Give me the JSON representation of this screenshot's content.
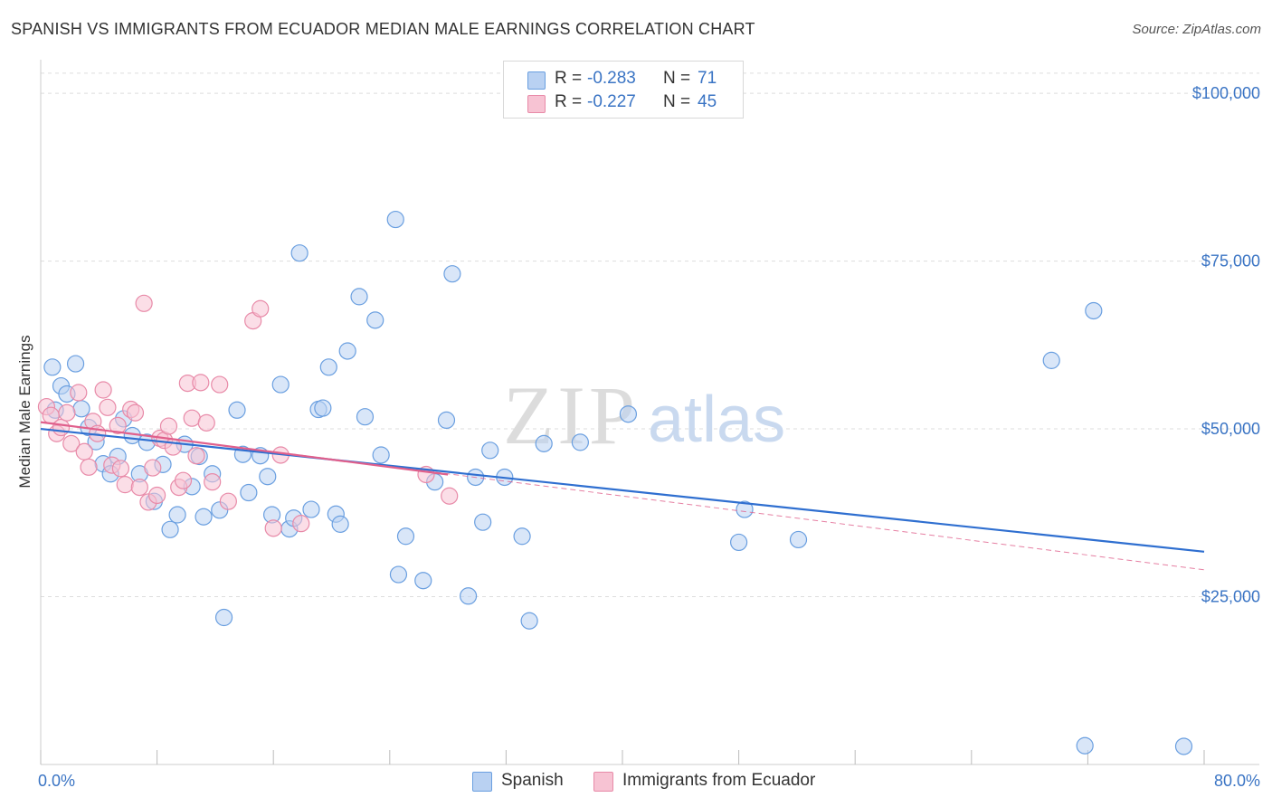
{
  "header": {
    "title": "SPANISH VS IMMIGRANTS FROM ECUADOR MEDIAN MALE EARNINGS CORRELATION CHART",
    "source": "Source: ZipAtlas.com"
  },
  "watermark": {
    "zip": "ZIP",
    "atlas": "atlas"
  },
  "legend_stats": [
    {
      "r_label": "R =",
      "r_value": "-0.283",
      "n_label": "N =",
      "n_value": "71"
    },
    {
      "r_label": "R =",
      "r_value": "-0.227",
      "n_label": "N =",
      "n_value": "45"
    }
  ],
  "chart_data": {
    "type": "scatter",
    "title": "SPANISH VS IMMIGRANTS FROM ECUADOR MEDIAN MALE EARNINGS CORRELATION CHART",
    "xlabel": "",
    "ylabel": "Median Male Earnings",
    "xlim": [
      0,
      80
    ],
    "ylim": [
      0,
      105000
    ],
    "x_tick_labels": [
      "0.0%",
      "80.0%"
    ],
    "y_ticks": [
      25000,
      50000,
      75000,
      100000
    ],
    "y_tick_labels": [
      "$25,000",
      "$50,000",
      "$75,000",
      "$100,000"
    ],
    "grid": true,
    "legend_position": "bottom",
    "series": [
      {
        "name": "Spanish",
        "color": "#6a9fe0",
        "fill": "#b9d1f2",
        "line_color": "#2f6fd0",
        "r": -0.283,
        "n": 71,
        "trend": {
          "x": [
            0,
            80
          ],
          "y": [
            50000,
            31700
          ]
        },
        "points": [
          [
            0.8,
            59200
          ],
          [
            1.0,
            52800
          ],
          [
            1.4,
            56400
          ],
          [
            1.8,
            55200
          ],
          [
            2.4,
            59700
          ],
          [
            2.8,
            53000
          ],
          [
            3.3,
            50200
          ],
          [
            3.8,
            48100
          ],
          [
            4.3,
            44800
          ],
          [
            4.8,
            43300
          ],
          [
            5.3,
            45900
          ],
          [
            5.7,
            51500
          ],
          [
            6.3,
            49000
          ],
          [
            6.8,
            43300
          ],
          [
            7.3,
            48000
          ],
          [
            7.8,
            39200
          ],
          [
            8.4,
            44700
          ],
          [
            8.9,
            35000
          ],
          [
            9.4,
            37200
          ],
          [
            9.9,
            47700
          ],
          [
            10.4,
            41400
          ],
          [
            10.9,
            45900
          ],
          [
            11.2,
            36900
          ],
          [
            11.8,
            43300
          ],
          [
            12.3,
            37900
          ],
          [
            12.6,
            21900
          ],
          [
            13.5,
            52800
          ],
          [
            13.9,
            46200
          ],
          [
            14.3,
            40500
          ],
          [
            15.1,
            46000
          ],
          [
            15.6,
            42900
          ],
          [
            15.9,
            37200
          ],
          [
            16.5,
            56600
          ],
          [
            17.1,
            35100
          ],
          [
            17.4,
            36700
          ],
          [
            17.8,
            76200
          ],
          [
            18.6,
            38000
          ],
          [
            19.1,
            52900
          ],
          [
            19.4,
            53100
          ],
          [
            19.8,
            59200
          ],
          [
            20.3,
            37300
          ],
          [
            20.6,
            35800
          ],
          [
            21.1,
            61600
          ],
          [
            21.9,
            69700
          ],
          [
            22.3,
            51800
          ],
          [
            23.0,
            66200
          ],
          [
            23.4,
            46100
          ],
          [
            24.4,
            81200
          ],
          [
            24.6,
            28300
          ],
          [
            25.1,
            34000
          ],
          [
            26.3,
            27400
          ],
          [
            27.1,
            42100
          ],
          [
            27.9,
            51300
          ],
          [
            28.3,
            73100
          ],
          [
            29.4,
            25100
          ],
          [
            29.9,
            42800
          ],
          [
            30.4,
            36100
          ],
          [
            30.9,
            46800
          ],
          [
            31.9,
            42800
          ],
          [
            33.1,
            34000
          ],
          [
            33.6,
            21400
          ],
          [
            34.6,
            47800
          ],
          [
            37.1,
            48000
          ],
          [
            40.4,
            52200
          ],
          [
            48.0,
            33100
          ],
          [
            48.4,
            38000
          ],
          [
            52.1,
            33500
          ],
          [
            69.5,
            60200
          ],
          [
            72.4,
            67600
          ],
          [
            71.8,
            2800
          ],
          [
            78.6,
            2700
          ]
        ]
      },
      {
        "name": "Immigrants from Ecuador",
        "color": "#e88aa8",
        "fill": "#f7c3d3",
        "line_color": "#e0608c",
        "r": -0.227,
        "n": 45,
        "trend": {
          "x": [
            0,
            28
          ],
          "y": [
            51000,
            43200
          ]
        },
        "trend_ext": {
          "x": [
            0,
            80
          ],
          "y": [
            51000,
            29000
          ]
        },
        "points": [
          [
            0.4,
            53300
          ],
          [
            0.7,
            52000
          ],
          [
            1.1,
            49300
          ],
          [
            1.4,
            50200
          ],
          [
            1.8,
            52400
          ],
          [
            2.1,
            47800
          ],
          [
            2.6,
            55400
          ],
          [
            3.0,
            46600
          ],
          [
            3.3,
            44300
          ],
          [
            3.6,
            51100
          ],
          [
            3.9,
            49300
          ],
          [
            4.3,
            55800
          ],
          [
            4.6,
            53200
          ],
          [
            4.9,
            44600
          ],
          [
            5.3,
            50500
          ],
          [
            5.5,
            44100
          ],
          [
            5.8,
            41700
          ],
          [
            6.2,
            52900
          ],
          [
            6.5,
            52400
          ],
          [
            6.8,
            41300
          ],
          [
            7.1,
            68700
          ],
          [
            7.4,
            39100
          ],
          [
            7.7,
            44200
          ],
          [
            8.0,
            40100
          ],
          [
            8.2,
            48600
          ],
          [
            8.5,
            48300
          ],
          [
            8.8,
            50400
          ],
          [
            9.1,
            47300
          ],
          [
            9.5,
            41300
          ],
          [
            9.8,
            42300
          ],
          [
            10.1,
            56800
          ],
          [
            10.4,
            51600
          ],
          [
            10.7,
            46000
          ],
          [
            11.0,
            56900
          ],
          [
            11.4,
            50900
          ],
          [
            11.8,
            42100
          ],
          [
            12.3,
            56600
          ],
          [
            12.9,
            39200
          ],
          [
            14.6,
            66100
          ],
          [
            15.1,
            67900
          ],
          [
            16.0,
            35200
          ],
          [
            16.5,
            46100
          ],
          [
            17.9,
            35900
          ],
          [
            26.5,
            43200
          ],
          [
            28.1,
            40000
          ]
        ]
      }
    ]
  }
}
